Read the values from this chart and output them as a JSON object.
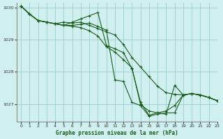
{
  "title": "Graphe pression niveau de la mer (hPa)",
  "background_color": "#cff0ef",
  "grid_color": "#99cccc",
  "line_color": "#1a5c1a",
  "marker_color": "#1a5c1a",
  "xlim": [
    -0.5,
    23
  ],
  "ylim": [
    1026.45,
    1030.15
  ],
  "yticks": [
    1027,
    1028,
    1029,
    1030
  ],
  "xticks": [
    0,
    1,
    2,
    3,
    4,
    5,
    6,
    7,
    8,
    9,
    10,
    11,
    12,
    13,
    14,
    15,
    16,
    17,
    18,
    19,
    20,
    21,
    22,
    23
  ],
  "series": [
    [
      1030.05,
      1029.8,
      1029.6,
      1029.55,
      1029.5,
      1029.45,
      1029.55,
      1029.65,
      1029.75,
      1029.85,
      1028.82,
      1028.72,
      1028.6,
      1028.1,
      1027.05,
      1026.65,
      1026.72,
      1026.78,
      1026.95,
      1027.28,
      1027.32,
      1027.28,
      1027.2,
      1027.1
    ],
    [
      1030.05,
      1029.8,
      1029.6,
      1029.55,
      1029.5,
      1029.55,
      1029.52,
      1029.55,
      1029.45,
      1029.35,
      1029.25,
      1029.15,
      1028.85,
      1028.45,
      1028.15,
      1027.85,
      1027.55,
      1027.35,
      1027.3,
      1027.28,
      1027.32,
      1027.28,
      1027.2,
      1027.1
    ],
    [
      1030.05,
      1029.8,
      1029.6,
      1029.55,
      1029.5,
      1029.45,
      1029.45,
      1029.48,
      1029.52,
      1029.42,
      1029.3,
      1027.75,
      1027.7,
      1027.05,
      1026.95,
      1026.62,
      1026.68,
      1026.72,
      1026.72,
      1027.28,
      1027.32,
      1027.28,
      1027.2,
      1027.1
    ],
    [
      1030.05,
      1029.8,
      1029.6,
      1029.55,
      1029.5,
      1029.45,
      1029.42,
      1029.38,
      1029.28,
      1029.12,
      1028.78,
      1028.62,
      1028.38,
      1028.12,
      1026.98,
      1026.78,
      1026.72,
      1026.68,
      1027.58,
      1027.28,
      1027.32,
      1027.28,
      1027.2,
      1027.1
    ]
  ]
}
